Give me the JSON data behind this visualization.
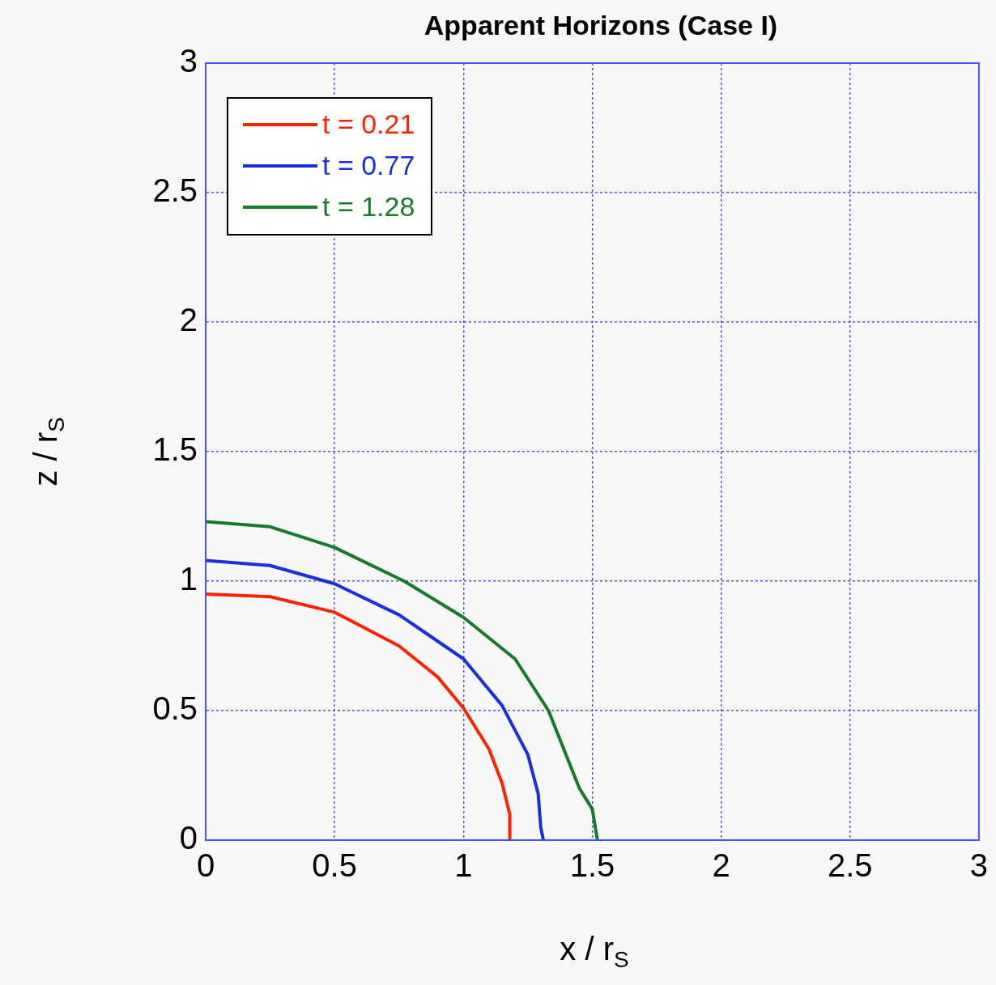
{
  "chart_data": {
    "type": "line",
    "title": "Apparent Horizons (Case I)",
    "xlabel": "x / r$_{S}$",
    "ylabel": "z / r$_{S}$",
    "xlim": [
      0,
      3
    ],
    "xticks": [
      0,
      0.5,
      1,
      1.5,
      2,
      2.5,
      3
    ],
    "ylim": [
      0,
      3
    ],
    "yticks": [
      0,
      0.5,
      1,
      1.5,
      2,
      2.5,
      3
    ],
    "grid": true,
    "legend": "top left",
    "marker": "none",
    "line_style": "solid",
    "series": [
      {
        "name": "t = 0.21",
        "color": "#ff2200",
        "x": [
          0,
          0.25,
          0.5,
          0.75,
          0.9,
          1.0,
          1.1,
          1.15,
          1.18,
          1.18
        ],
        "values": [
          0.95,
          0.94,
          0.88,
          0.75,
          0.63,
          0.51,
          0.35,
          0.22,
          0.1,
          0
        ]
      },
      {
        "name": "t = 0.77",
        "color": "#1a2ee0",
        "x": [
          0,
          0.25,
          0.5,
          0.75,
          1.0,
          1.15,
          1.25,
          1.29,
          1.3,
          1.31
        ],
        "values": [
          1.08,
          1.06,
          0.99,
          0.87,
          0.7,
          0.52,
          0.33,
          0.18,
          0.05,
          0
        ]
      },
      {
        "name": "t = 1.28",
        "color": "#167a2a",
        "x": [
          0,
          0.25,
          0.5,
          0.77,
          1.0,
          1.2,
          1.33,
          1.45,
          1.5,
          1.52
        ],
        "values": [
          1.23,
          1.21,
          1.13,
          1.0,
          0.86,
          0.7,
          0.5,
          0.2,
          0.12,
          0
        ]
      }
    ]
  }
}
